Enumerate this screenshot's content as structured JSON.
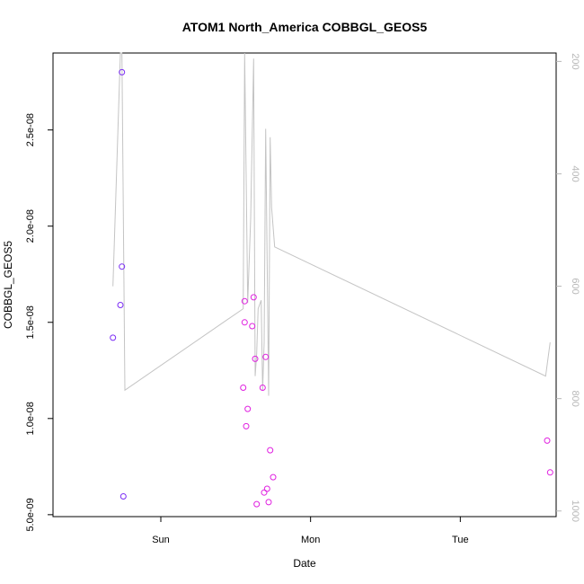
{
  "chart_data": {
    "type": "scatter",
    "title": "ATOM1 North_America COBBGL_GEOS5",
    "xlabel": "Date",
    "ylabel": "COBBGL_GEOS5",
    "x_ticks": [
      "Sun",
      "Mon",
      "Tue"
    ],
    "xlim": [
      -0.72,
      2.64
    ],
    "y_ticks": [
      "5.0e-09",
      "1.0e-08",
      "1.5e-08",
      "2.0e-08",
      "2.5e-08"
    ],
    "y_tick_values": [
      5e-09,
      1e-08,
      1.5e-08,
      2e-08,
      2.5e-08
    ],
    "ylim": [
      4.9e-09,
      2.9e-08
    ],
    "y2_ticks": [
      "200",
      "400",
      "600",
      "800",
      "1000"
    ],
    "y2_tick_values": [
      200,
      400,
      600,
      800,
      1000
    ],
    "y2lim": [
      1010,
      185
    ],
    "colors": {
      "line": "#c4c4c4",
      "point_early": "#7b2cf5",
      "point_late": "#e020e0"
    },
    "points": [
      {
        "x": -0.32,
        "y": 1.42e-08
      },
      {
        "x": -0.27,
        "y": 1.59e-08
      },
      {
        "x": -0.26,
        "y": 2.8e-08
      },
      {
        "x": -0.26,
        "y": 1.79e-08
      },
      {
        "x": -0.25,
        "y": 5.95e-09
      },
      {
        "x": 0.55,
        "y": 1.16e-08
      },
      {
        "x": 0.56,
        "y": 1.5e-08
      },
      {
        "x": 0.56,
        "y": 1.61e-08
      },
      {
        "x": 0.57,
        "y": 9.6e-09
      },
      {
        "x": 0.58,
        "y": 1.05e-08
      },
      {
        "x": 0.61,
        "y": 1.48e-08
      },
      {
        "x": 0.62,
        "y": 1.63e-08
      },
      {
        "x": 0.63,
        "y": 1.31e-08
      },
      {
        "x": 0.64,
        "y": 5.55e-09
      },
      {
        "x": 0.68,
        "y": 1.16e-08
      },
      {
        "x": 0.69,
        "y": 6.15e-09
      },
      {
        "x": 0.7,
        "y": 1.32e-08
      },
      {
        "x": 0.71,
        "y": 6.35e-09
      },
      {
        "x": 0.72,
        "y": 5.65e-09
      },
      {
        "x": 0.73,
        "y": 8.35e-09
      },
      {
        "x": 0.75,
        "y": 6.95e-09
      },
      {
        "x": 2.58,
        "y": 8.85e-09
      },
      {
        "x": 2.6,
        "y": 7.2e-09
      }
    ],
    "pressure_line": [
      {
        "x": -0.32,
        "y2": 600
      },
      {
        "x": -0.27,
        "y2": 185
      },
      {
        "x": -0.26,
        "y2": 185
      },
      {
        "x": -0.24,
        "y2": 785
      },
      {
        "x": 0.55,
        "y2": 640
      },
      {
        "x": 0.56,
        "y2": 185
      },
      {
        "x": 0.58,
        "y2": 630
      },
      {
        "x": 0.6,
        "y2": 480
      },
      {
        "x": 0.62,
        "y2": 195
      },
      {
        "x": 0.63,
        "y2": 760
      },
      {
        "x": 0.64,
        "y2": 720
      },
      {
        "x": 0.65,
        "y2": 640
      },
      {
        "x": 0.67,
        "y2": 625
      },
      {
        "x": 0.68,
        "y2": 785
      },
      {
        "x": 0.69,
        "y2": 700
      },
      {
        "x": 0.7,
        "y2": 320
      },
      {
        "x": 0.72,
        "y2": 795
      },
      {
        "x": 0.73,
        "y2": 335
      },
      {
        "x": 0.74,
        "y2": 460
      },
      {
        "x": 0.76,
        "y2": 530
      },
      {
        "x": 2.57,
        "y2": 760
      },
      {
        "x": 2.6,
        "y2": 700
      }
    ],
    "grid": false,
    "legend": "none"
  }
}
